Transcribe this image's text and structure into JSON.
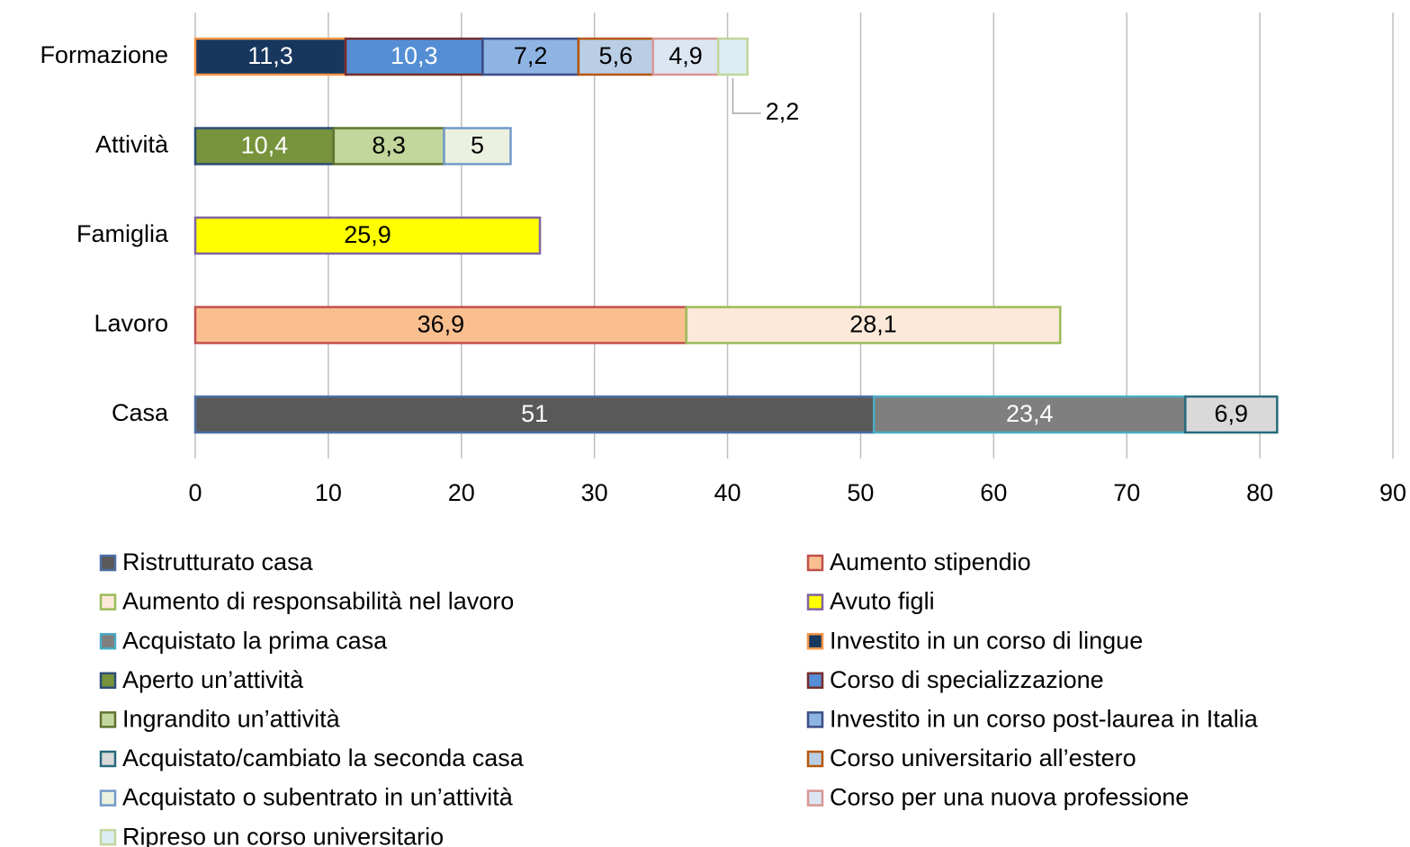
{
  "chart_data": {
    "type": "stacked-bar-horizontal",
    "categories": [
      "Formazione",
      "Attività",
      "Famiglia",
      "Lavoro",
      "Casa"
    ],
    "xlim": [
      0,
      90
    ],
    "xticks": [
      0,
      10,
      20,
      30,
      40,
      50,
      60,
      70,
      80,
      90
    ],
    "grid": true,
    "series": [
      {
        "name": "Ristrutturato casa",
        "color": "#595959",
        "border": "#4a6fa5",
        "values": [
          null,
          null,
          null,
          null,
          51
        ],
        "value_labels": [
          null,
          null,
          null,
          null,
          "51"
        ]
      },
      {
        "name": "Aumento stipendio",
        "color": "#fabf8f",
        "border": "#c0504d",
        "values": [
          null,
          null,
          null,
          36.9,
          null
        ],
        "value_labels": [
          null,
          null,
          null,
          "36,9",
          null
        ]
      },
      {
        "name": "Aumento di responsabilità nel lavoro",
        "color": "#fde9d9",
        "border": "#9bbb59",
        "values": [
          null,
          null,
          null,
          28.1,
          null
        ],
        "value_labels": [
          null,
          null,
          null,
          "28,1",
          null
        ]
      },
      {
        "name": "Avuto figli",
        "color": "#ffff00",
        "border": "#8064a2",
        "values": [
          null,
          null,
          25.9,
          null,
          null
        ],
        "value_labels": [
          null,
          null,
          "25,9",
          null,
          null
        ]
      },
      {
        "name": "Acquistato la prima casa",
        "color": "#7f7f7f",
        "border": "#4bacc6",
        "values": [
          null,
          null,
          null,
          null,
          23.4
        ],
        "value_labels": [
          null,
          null,
          null,
          null,
          "23,4"
        ]
      },
      {
        "name": "Investito in un corso di lingue",
        "color": "#17375e",
        "border": "#f79646",
        "values": [
          11.3,
          null,
          null,
          null,
          null
        ],
        "value_labels": [
          "11,3",
          null,
          null,
          null,
          null
        ]
      },
      {
        "name": "Aperto un’attività",
        "color": "#77933c",
        "border": "#2c4d75",
        "values": [
          null,
          10.4,
          null,
          null,
          null
        ],
        "value_labels": [
          null,
          "10,4",
          null,
          null,
          null
        ]
      },
      {
        "name": "Corso di specializzazione",
        "color": "#558ed5",
        "border": "#772c2a",
        "values": [
          10.3,
          null,
          null,
          null,
          null
        ],
        "value_labels": [
          "10,3",
          null,
          null,
          null,
          null
        ]
      },
      {
        "name": "Ingrandito un’attività",
        "color": "#c3d69b",
        "border": "#5f7530",
        "values": [
          null,
          8.3,
          null,
          null,
          null
        ],
        "value_labels": [
          null,
          "8,3",
          null,
          null,
          null
        ]
      },
      {
        "name": "Investito in un corso post-laurea in Italia",
        "color": "#8eb4e3",
        "border": "#3b4e87",
        "values": [
          7.2,
          null,
          null,
          null,
          null
        ],
        "value_labels": [
          "7,2",
          null,
          null,
          null,
          null
        ]
      },
      {
        "name": "Acquistato/cambiato la seconda casa",
        "color": "#d9d9d9",
        "border": "#276a7c",
        "values": [
          null,
          null,
          null,
          null,
          6.9
        ],
        "value_labels": [
          null,
          null,
          null,
          null,
          "6,9"
        ]
      },
      {
        "name": "Corso universitario all’estero",
        "color": "#b9cde5",
        "border": "#b65708",
        "values": [
          5.6,
          null,
          null,
          null,
          null
        ],
        "value_labels": [
          "5,6",
          null,
          null,
          null,
          null
        ]
      },
      {
        "name": "Acquistato o subentrato in un’attività",
        "color": "#ebf1de",
        "border": "#729aca",
        "values": [
          null,
          5,
          null,
          null,
          null
        ],
        "value_labels": [
          null,
          "5",
          null,
          null,
          null
        ]
      },
      {
        "name": "Corso per una nuova professione",
        "color": "#dce6f2",
        "border": "#d99694",
        "values": [
          4.9,
          null,
          null,
          null,
          null
        ],
        "value_labels": [
          "4,9",
          null,
          null,
          null,
          null
        ]
      },
      {
        "name": "Ripreso un corso universitario",
        "color": "#dbeef4",
        "border": "#c3d69b",
        "values": [
          2.2,
          null,
          null,
          null,
          null
        ],
        "value_labels": [
          "2,2",
          null,
          null,
          null,
          null
        ]
      }
    ]
  }
}
